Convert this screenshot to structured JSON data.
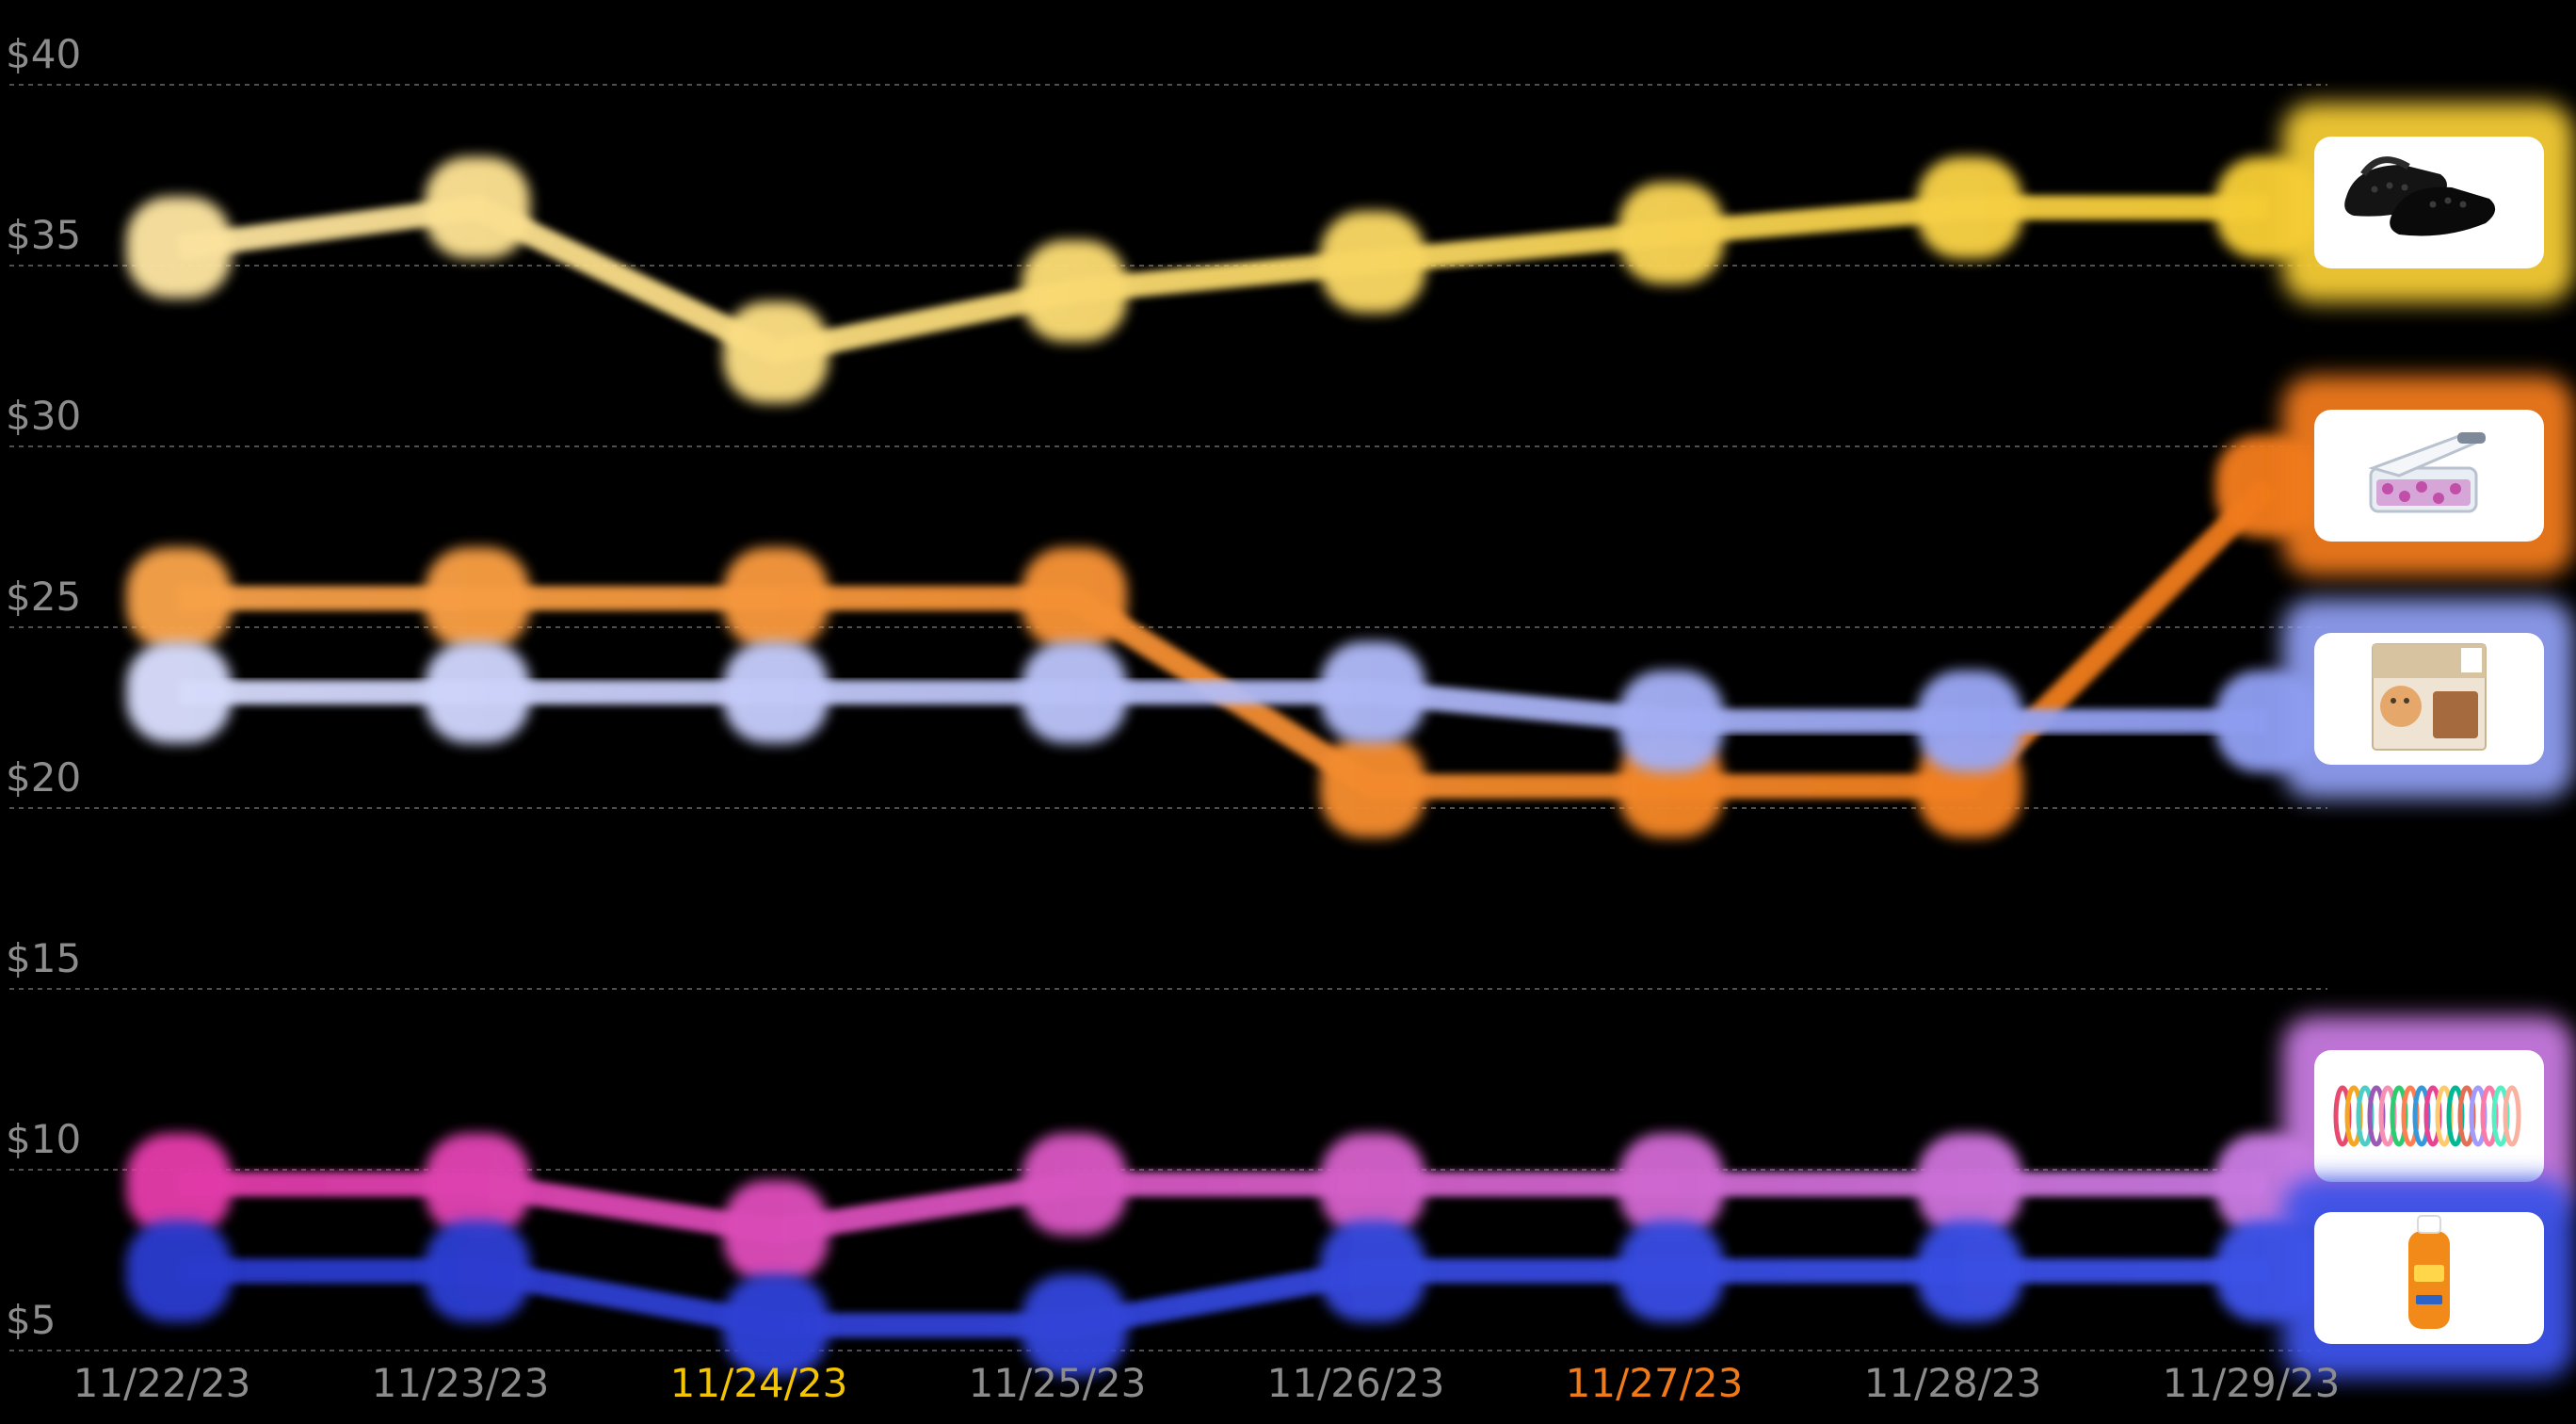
{
  "chart_data": {
    "type": "line",
    "title": "",
    "xlabel": "",
    "ylabel": "",
    "ylim": [
      4,
      40
    ],
    "grid": true,
    "y_ticks": [
      40,
      35,
      30,
      25,
      20,
      15,
      10,
      5
    ],
    "y_tick_labels": [
      "$40",
      "$35",
      "$30",
      "$25",
      "$20",
      "$15",
      "$10",
      "$5"
    ],
    "x": [
      "11/22/23",
      "11/23/23",
      "11/24/23",
      "11/25/23",
      "11/26/23",
      "11/27/23",
      "11/28/23",
      "11/29/23"
    ],
    "x_label_colors": [
      "#8c8c8c",
      "#8c8c8c",
      "#f5c400",
      "#8c8c8c",
      "#8c8c8c",
      "#f07a1a",
      "#8c8c8c",
      "#8c8c8c"
    ],
    "series": [
      {
        "product": "black clogs",
        "values": [
          35.5,
          36.6,
          32.6,
          34.3,
          35.1,
          35.9,
          36.6,
          36.6
        ],
        "color_start": "#fbe3a0",
        "color_end": "#f5cc35"
      },
      {
        "product": "vegetable chopper",
        "values": [
          25.8,
          25.8,
          25.8,
          25.8,
          20.6,
          20.6,
          20.6,
          28.9
        ],
        "color_start": "#f7a24a",
        "color_end": "#f07a1a"
      },
      {
        "product": "cat food variety pack",
        "values": [
          23.2,
          23.2,
          23.2,
          23.2,
          23.2,
          22.4,
          22.4,
          22.4
        ],
        "color_start": "#d8dcfb",
        "color_end": "#8e9cf0"
      },
      {
        "product": "bracelet set",
        "values": [
          9.6,
          9.6,
          8.3,
          9.6,
          9.6,
          9.6,
          9.6,
          9.6
        ],
        "color_start": "#e23aa8",
        "color_end": "#c77ae0"
      },
      {
        "product": "sunscreen spray",
        "values": [
          7.2,
          7.2,
          5.7,
          5.7,
          7.2,
          7.2,
          7.2,
          7.2
        ],
        "color_start": "#2a3acc",
        "color_end": "#3c52e8"
      }
    ]
  }
}
